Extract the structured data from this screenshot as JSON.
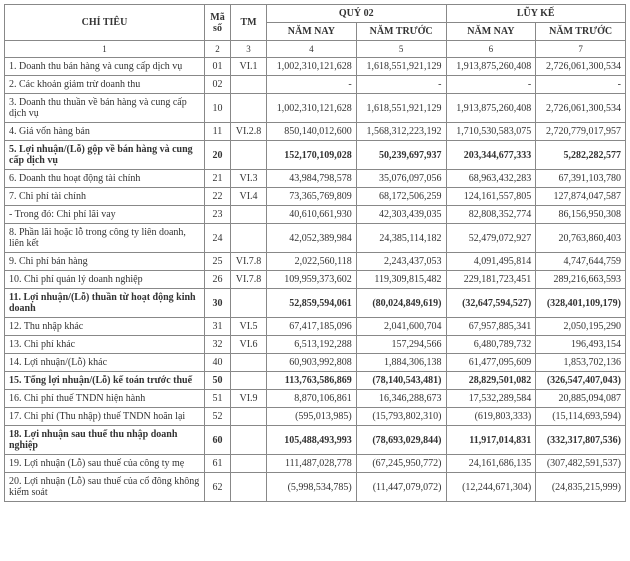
{
  "header": {
    "chitieu": "CHỈ TIÊU",
    "maso": "Mã số",
    "tm": "TM",
    "quy": "QUÝ 02",
    "luyke": "LŨY KẾ",
    "namnay": "NĂM NAY",
    "namtruoc": "NĂM TRƯỚC"
  },
  "subhead": [
    "1",
    "2",
    "3",
    "4",
    "5",
    "6",
    "7"
  ],
  "rows": [
    {
      "label": "1. Doanh thu bán hàng và cung cấp dịch vụ",
      "ms": "01",
      "tm": "VI.1",
      "q_now": "1,002,310,121,628",
      "q_prev": "1,618,551,921,129",
      "l_now": "1,913,875,260,408",
      "l_prev": "2,726,061,300,534",
      "bold": false
    },
    {
      "label": "2. Các khoản giảm trừ doanh thu",
      "ms": "02",
      "tm": "",
      "q_now": "-",
      "q_prev": "-",
      "l_now": "-",
      "l_prev": "-",
      "bold": false
    },
    {
      "label": "3. Doanh thu thuần về bán hàng và cung cấp dịch vụ",
      "ms": "10",
      "tm": "",
      "q_now": "1,002,310,121,628",
      "q_prev": "1,618,551,921,129",
      "l_now": "1,913,875,260,408",
      "l_prev": "2,726,061,300,534",
      "bold": false
    },
    {
      "label": "4. Giá vốn hàng bán",
      "ms": "11",
      "tm": "VI.2.8",
      "q_now": "850,140,012,600",
      "q_prev": "1,568,312,223,192",
      "l_now": "1,710,530,583,075",
      "l_prev": "2,720,779,017,957",
      "bold": false
    },
    {
      "label": "5. Lợi nhuận/(Lỗ) gộp về bán hàng và cung cấp dịch vụ",
      "ms": "20",
      "tm": "",
      "q_now": "152,170,109,028",
      "q_prev": "50,239,697,937",
      "l_now": "203,344,677,333",
      "l_prev": "5,282,282,577",
      "bold": true
    },
    {
      "label": "6. Doanh thu hoạt động tài chính",
      "ms": "21",
      "tm": "VI.3",
      "q_now": "43,984,798,578",
      "q_prev": "35,076,097,056",
      "l_now": "68,963,432,283",
      "l_prev": "67,391,103,780",
      "bold": false
    },
    {
      "label": "7. Chi phí tài chính",
      "ms": "22",
      "tm": "VI.4",
      "q_now": "73,365,769,809",
      "q_prev": "68,172,506,259",
      "l_now": "124,161,557,805",
      "l_prev": "127,874,047,587",
      "bold": false
    },
    {
      "label": "- Trong đó: Chi phí lãi vay",
      "ms": "23",
      "tm": "",
      "q_now": "40,610,661,930",
      "q_prev": "42,303,439,035",
      "l_now": "82,808,352,774",
      "l_prev": "86,156,950,308",
      "bold": false
    },
    {
      "label": "8. Phần lãi hoặc lỗ trong công ty liên doanh, liên kết",
      "ms": "24",
      "tm": "",
      "q_now": "42,052,389,984",
      "q_prev": "24,385,114,182",
      "l_now": "52,479,072,927",
      "l_prev": "20,763,860,403",
      "bold": false
    },
    {
      "label": "9. Chi phí bán hàng",
      "ms": "25",
      "tm": "VI.7.8",
      "q_now": "2,022,560,118",
      "q_prev": "2,243,437,053",
      "l_now": "4,091,495,814",
      "l_prev": "4,747,644,759",
      "bold": false
    },
    {
      "label": "10. Chi phí quản lý doanh nghiệp",
      "ms": "26",
      "tm": "VI.7.8",
      "q_now": "109,959,373,602",
      "q_prev": "119,309,815,482",
      "l_now": "229,181,723,451",
      "l_prev": "289,216,663,593",
      "bold": false
    },
    {
      "label": "11. Lợi nhuận/(Lỗ) thuần từ hoạt động kinh doanh",
      "ms": "30",
      "tm": "",
      "q_now": "52,859,594,061",
      "q_prev": "(80,024,849,619)",
      "l_now": "(32,647,594,527)",
      "l_prev": "(328,401,109,179)",
      "bold": true
    },
    {
      "label": "12. Thu nhập khác",
      "ms": "31",
      "tm": "VI.5",
      "q_now": "67,417,185,096",
      "q_prev": "2,041,600,704",
      "l_now": "67,957,885,341",
      "l_prev": "2,050,195,290",
      "bold": false
    },
    {
      "label": "13. Chi phí khác",
      "ms": "32",
      "tm": "VI.6",
      "q_now": "6,513,192,288",
      "q_prev": "157,294,566",
      "l_now": "6,480,789,732",
      "l_prev": "196,493,154",
      "bold": false
    },
    {
      "label": "14. Lợi nhuận/(Lỗ) khác",
      "ms": "40",
      "tm": "",
      "q_now": "60,903,992,808",
      "q_prev": "1,884,306,138",
      "l_now": "61,477,095,609",
      "l_prev": "1,853,702,136",
      "bold": false
    },
    {
      "label": "15. Tổng lợi nhuận/(Lỗ) kế toán trước thuế",
      "ms": "50",
      "tm": "",
      "q_now": "113,763,586,869",
      "q_prev": "(78,140,543,481)",
      "l_now": "28,829,501,082",
      "l_prev": "(326,547,407,043)",
      "bold": true
    },
    {
      "label": "16. Chi phí thuế TNDN hiện hành",
      "ms": "51",
      "tm": "VI.9",
      "q_now": "8,870,106,861",
      "q_prev": "16,346,288,673",
      "l_now": "17,532,289,584",
      "l_prev": "20,885,094,087",
      "bold": false
    },
    {
      "label": "17. Chi phí (Thu nhập) thuế TNDN hoãn lại",
      "ms": "52",
      "tm": "",
      "q_now": "(595,013,985)",
      "q_prev": "(15,793,802,310)",
      "l_now": "(619,803,333)",
      "l_prev": "(15,114,693,594)",
      "bold": false
    },
    {
      "label": "18. Lợi nhuận sau thuế thu nhập doanh nghiệp",
      "ms": "60",
      "tm": "",
      "q_now": "105,488,493,993",
      "q_prev": "(78,693,029,844)",
      "l_now": "11,917,014,831",
      "l_prev": "(332,317,807,536)",
      "bold": true
    },
    {
      "label": "19. Lợi nhuận (Lỗ) sau thuế của công ty mẹ",
      "ms": "61",
      "tm": "",
      "q_now": "111,487,028,778",
      "q_prev": "(67,245,950,772)",
      "l_now": "24,161,686,135",
      "l_prev": "(307,482,591,537)",
      "bold": false
    },
    {
      "label": "20. Lợi nhuận (Lỗ) sau thuế của cổ đông không kiểm soát",
      "ms": "62",
      "tm": "",
      "q_now": "(5,998,534,785)",
      "q_prev": "(11,447,079,072)",
      "l_now": "(12,244,671,304)",
      "l_prev": "(24,835,215,999)",
      "bold": false
    }
  ]
}
